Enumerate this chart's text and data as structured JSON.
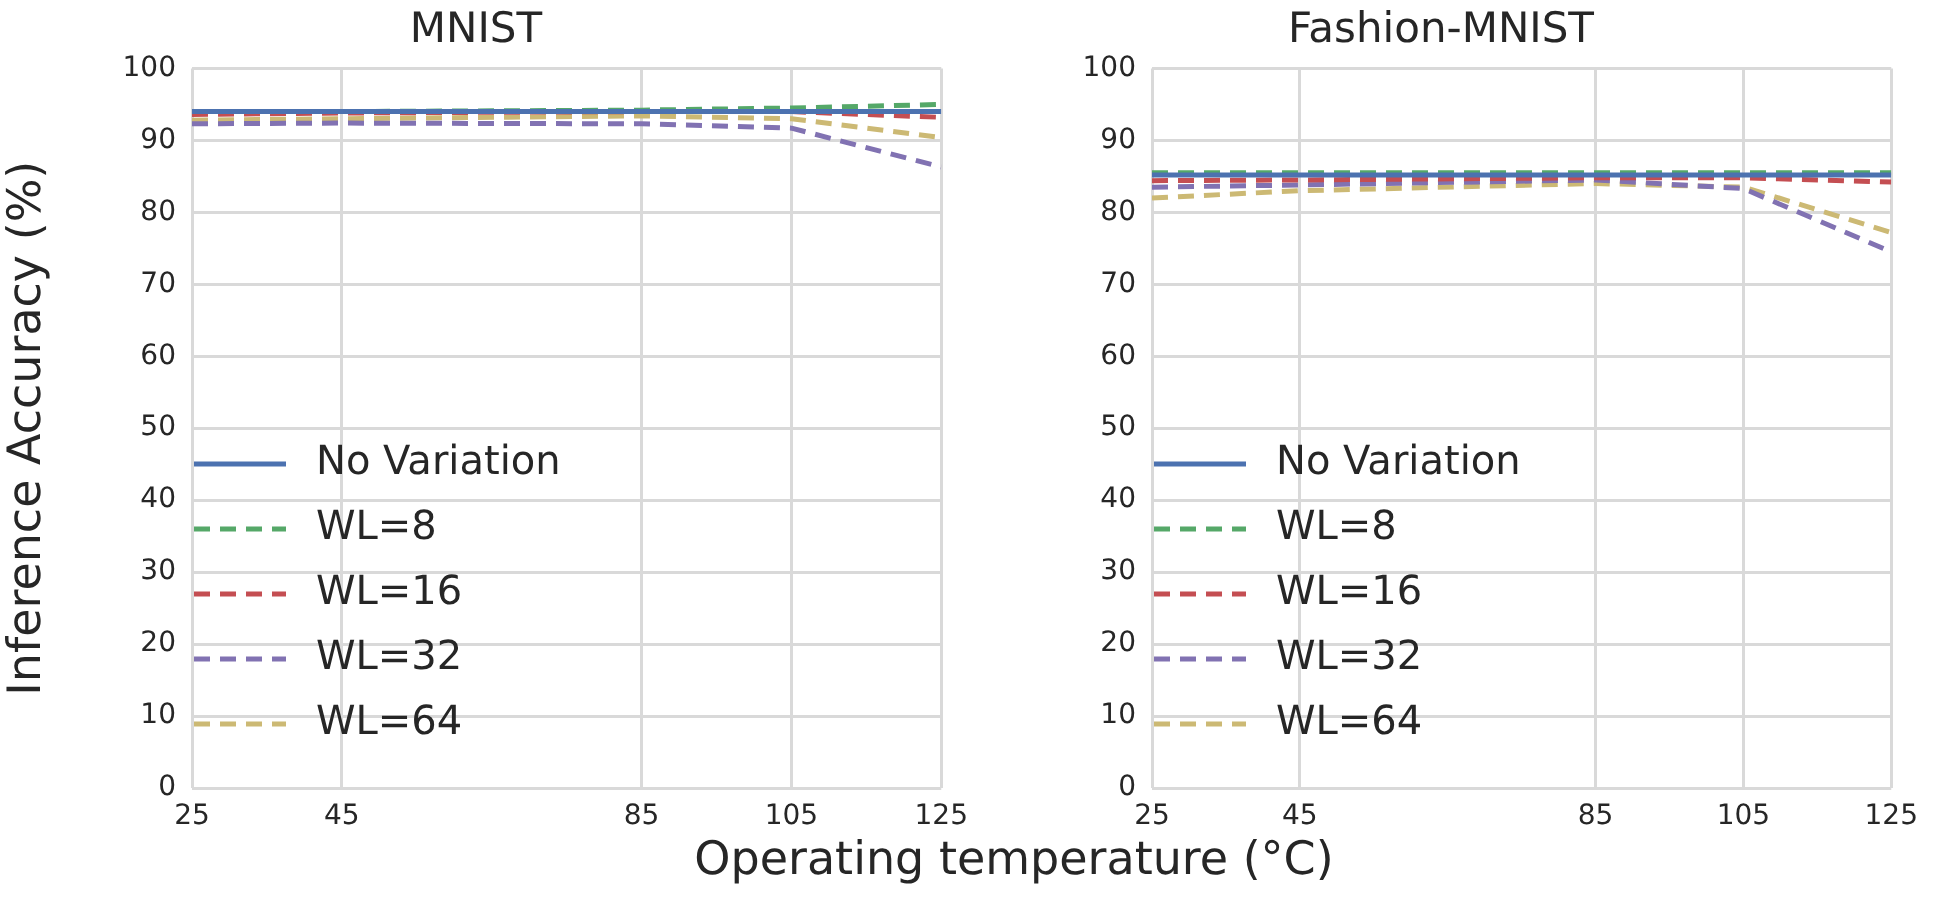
{
  "chart_data": [
    {
      "type": "line",
      "title": "MNIST",
      "ylabel": "Inference Accuracy (%)",
      "xlabel": "Operating temperature (°C)",
      "x": [
        25,
        45,
        85,
        105,
        125
      ],
      "xlim": [
        25,
        125
      ],
      "xticks": [
        25,
        45,
        85,
        105,
        125
      ],
      "ylim": [
        0,
        100
      ],
      "yticks": [
        0,
        10,
        20,
        30,
        40,
        50,
        60,
        70,
        80,
        90,
        100
      ],
      "grid": true,
      "legend": "bottom left",
      "marker": "none",
      "series": [
        {
          "name": "No Variation",
          "color": "#4c72b0",
          "line_style": "solid",
          "values": [
            94.0,
            94.0,
            94.0,
            94.0,
            94.0
          ]
        },
        {
          "name": "WL=8",
          "color": "#55a868",
          "line_style": "dashed",
          "values": [
            94.0,
            94.0,
            94.2,
            94.5,
            95.0
          ]
        },
        {
          "name": "WL=16",
          "color": "#c44e52",
          "line_style": "dashed",
          "values": [
            93.6,
            93.8,
            94.0,
            94.0,
            93.2
          ]
        },
        {
          "name": "WL=32",
          "color": "#8172b2",
          "line_style": "dashed",
          "values": [
            92.3,
            92.4,
            92.3,
            91.7,
            86.3
          ]
        },
        {
          "name": "WL=64",
          "color": "#ccb974",
          "line_style": "dashed",
          "values": [
            92.8,
            93.0,
            93.4,
            93.0,
            90.4
          ]
        }
      ]
    },
    {
      "type": "line",
      "title": "Fashion-MNIST",
      "x": [
        25,
        45,
        85,
        105,
        125
      ],
      "xlim": [
        25,
        125
      ],
      "xticks": [
        25,
        45,
        85,
        105,
        125
      ],
      "ylim": [
        0,
        100
      ],
      "yticks": [
        0,
        10,
        20,
        30,
        40,
        50,
        60,
        70,
        80,
        90,
        100
      ],
      "grid": true,
      "legend": "bottom left",
      "marker": "none",
      "series": [
        {
          "name": "No Variation",
          "color": "#4c72b0",
          "line_style": "solid",
          "values": [
            85.2,
            85.2,
            85.2,
            85.2,
            85.2
          ]
        },
        {
          "name": "WL=8",
          "color": "#55a868",
          "line_style": "dashed",
          "values": [
            85.5,
            85.5,
            85.5,
            85.5,
            85.5
          ]
        },
        {
          "name": "WL=16",
          "color": "#c44e52",
          "line_style": "dashed",
          "values": [
            84.4,
            84.5,
            84.8,
            84.8,
            84.2
          ]
        },
        {
          "name": "WL=32",
          "color": "#8172b2",
          "line_style": "dashed",
          "values": [
            83.5,
            83.8,
            84.5,
            83.3,
            74.5
          ]
        },
        {
          "name": "WL=64",
          "color": "#ccb974",
          "line_style": "dashed",
          "values": [
            82.0,
            83.0,
            84.0,
            83.5,
            77.2
          ]
        }
      ]
    }
  ]
}
